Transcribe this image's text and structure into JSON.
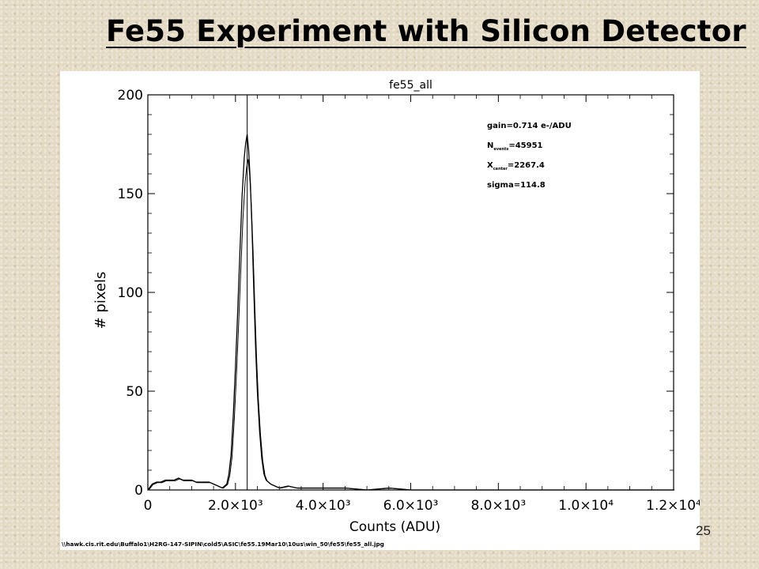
{
  "slide": {
    "title": "Fe55 Experiment with Silicon Detector",
    "page_number": "25"
  },
  "chart_data": {
    "type": "line",
    "title": "fe55_all",
    "xlabel": "Counts (ADU)",
    "ylabel": "# pixels",
    "xlim": [
      0,
      12000
    ],
    "ylim": [
      0,
      200
    ],
    "x_ticks": [
      {
        "value": 0,
        "label": "0"
      },
      {
        "value": 2000,
        "label": "2.0×10³"
      },
      {
        "value": 4000,
        "label": "4.0×10³"
      },
      {
        "value": 6000,
        "label": "6.0×10³"
      },
      {
        "value": 8000,
        "label": "8.0×10³"
      },
      {
        "value": 10000,
        "label": "1.0×10⁴"
      },
      {
        "value": 12000,
        "label": "1.2×10⁴"
      }
    ],
    "y_ticks": [
      {
        "value": 0,
        "label": "0"
      },
      {
        "value": 50,
        "label": "50"
      },
      {
        "value": 100,
        "label": "100"
      },
      {
        "value": 150,
        "label": "150"
      },
      {
        "value": 200,
        "label": "200"
      }
    ],
    "vertical_line_x": 2267.4,
    "annotations": [
      {
        "prefix": "gain=0.714 e-/ADU",
        "sub": "",
        "suffix": ""
      },
      {
        "prefix": "N",
        "sub": "events",
        "suffix": "=45951"
      },
      {
        "prefix": "X",
        "sub": "center",
        "suffix": "=2267.4"
      },
      {
        "prefix": "sigma=114.8",
        "sub": "",
        "suffix": ""
      }
    ],
    "footer_path": "\\\\hawk.cis.rit.edu\\Buffalo1\\H2RG-147-SIPIN\\cold5\\ASIC\\fe55.19Mar10\\10us\\win_50\\fe55\\fe55_all.jpg",
    "series": [
      {
        "x": [
          0,
          100,
          200,
          300,
          400,
          500,
          600,
          700,
          800,
          900,
          1000,
          1100,
          1200,
          1300,
          1400,
          1500,
          1600,
          1700,
          1800,
          1850,
          1900,
          1950,
          2000,
          2050,
          2100,
          2150,
          2200,
          2230,
          2267,
          2300,
          2340,
          2380,
          2420,
          2460,
          2500,
          2550,
          2600,
          2650,
          2700,
          2800,
          2900,
          3000,
          3200,
          3400,
          3600,
          3800,
          4000,
          4500,
          5000,
          5500,
          6000,
          7000,
          8000,
          9000,
          10000,
          11000,
          12000
        ],
        "y": [
          0,
          3,
          4,
          4,
          5,
          5,
          5,
          6,
          5,
          5,
          5,
          4,
          4,
          4,
          4,
          3,
          2,
          1,
          3,
          8,
          18,
          38,
          62,
          90,
          120,
          148,
          168,
          175,
          180,
          172,
          155,
          130,
          100,
          72,
          50,
          30,
          16,
          8,
          5,
          3,
          2,
          1,
          2,
          1,
          1,
          1,
          1,
          1,
          0,
          1,
          0,
          0,
          0,
          0,
          0,
          0,
          0
        ]
      }
    ]
  }
}
